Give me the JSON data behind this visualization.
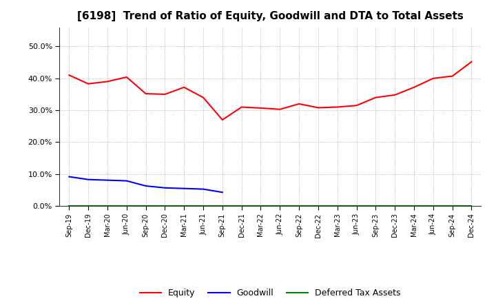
{
  "title": "[6198]  Trend of Ratio of Equity, Goodwill and DTA to Total Assets",
  "x_labels": [
    "Sep-19",
    "Dec-19",
    "Mar-20",
    "Jun-20",
    "Sep-20",
    "Dec-20",
    "Mar-21",
    "Jun-21",
    "Sep-21",
    "Dec-21",
    "Mar-22",
    "Jun-22",
    "Sep-22",
    "Dec-22",
    "Mar-23",
    "Jun-23",
    "Sep-23",
    "Dec-23",
    "Mar-24",
    "Jun-24",
    "Sep-24",
    "Dec-24"
  ],
  "equity": [
    0.41,
    0.383,
    0.39,
    0.404,
    0.352,
    0.35,
    0.372,
    0.34,
    0.27,
    0.31,
    0.307,
    0.303,
    0.32,
    0.308,
    0.31,
    0.315,
    0.34,
    0.348,
    0.372,
    0.4,
    0.407,
    0.452
  ],
  "goodwill": [
    0.092,
    0.083,
    0.081,
    0.079,
    0.063,
    0.057,
    0.055,
    0.053,
    0.043,
    null,
    null,
    null,
    null,
    null,
    null,
    null,
    null,
    null,
    null,
    null,
    null,
    null
  ],
  "dta": [
    0.001,
    0.001,
    0.001,
    0.001,
    0.001,
    0.001,
    0.001,
    0.001,
    0.001,
    0.001,
    0.001,
    0.001,
    0.001,
    0.001,
    0.001,
    0.001,
    0.001,
    0.001,
    0.001,
    0.001,
    0.001,
    0.001
  ],
  "equity_color": "#FF0000",
  "goodwill_color": "#0000FF",
  "dta_color": "#008000",
  "background_color": "#FFFFFF",
  "plot_bg_color": "#FFFFFF",
  "grid_color": "#999999",
  "ylim": [
    0.0,
    0.56
  ],
  "yticks": [
    0.0,
    0.1,
    0.2,
    0.3,
    0.4,
    0.5
  ],
  "title_fontsize": 11,
  "tick_fontsize": 8,
  "linewidth": 1.5
}
